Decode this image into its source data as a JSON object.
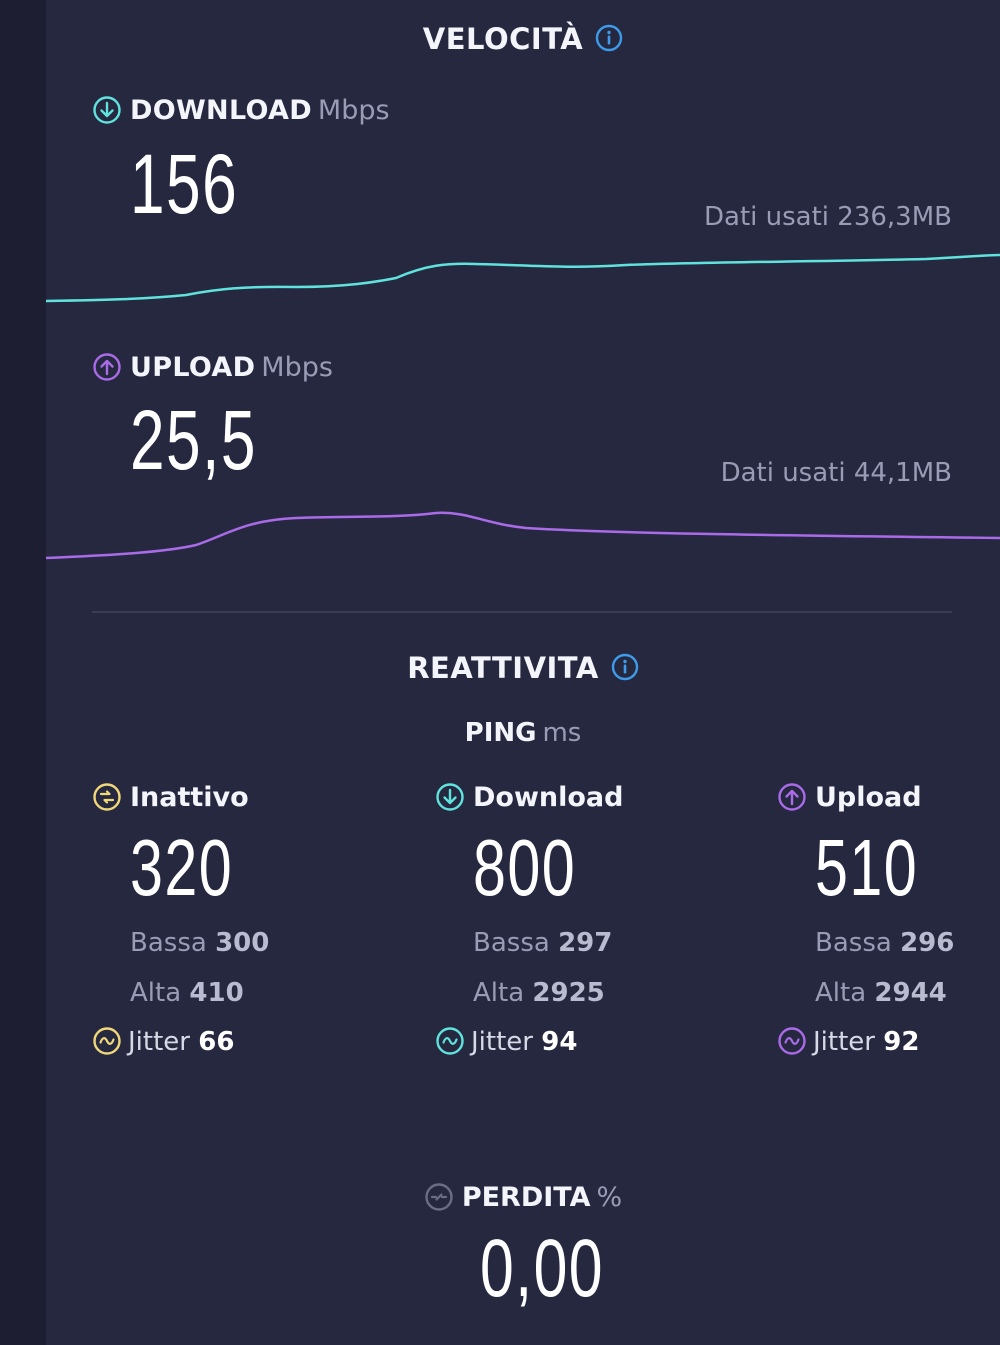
{
  "speed": {
    "title": "VELOCITÀ",
    "download": {
      "label": "DOWNLOAD",
      "unit": "Mbps",
      "value": "156",
      "data_used": "Dati usati 236,3MB",
      "color": "#5fe3dc"
    },
    "upload": {
      "label": "UPLOAD",
      "unit": "Mbps",
      "value": "25,5",
      "data_used": "Dati usati 44,1MB",
      "color": "#a96be8"
    }
  },
  "responsiveness": {
    "title": "REATTIVITA",
    "ping_label": "PING",
    "ping_unit": "ms",
    "columns": [
      {
        "label": "Inattivo",
        "value": "320",
        "low_label": "Bassa",
        "low_value": "300",
        "high_label": "Alta",
        "high_value": "410",
        "jitter_label": "Jitter",
        "jitter_value": "66",
        "color": "#f0d87a"
      },
      {
        "label": "Download",
        "value": "800",
        "low_label": "Bassa",
        "low_value": "297",
        "high_label": "Alta",
        "high_value": "2925",
        "jitter_label": "Jitter",
        "jitter_value": "94",
        "color": "#5fe3dc"
      },
      {
        "label": "Upload",
        "value": "510",
        "low_label": "Bassa",
        "low_value": "296",
        "high_label": "Alta",
        "high_value": "2944",
        "jitter_label": "Jitter",
        "jitter_value": "92",
        "color": "#a96be8"
      }
    ]
  },
  "loss": {
    "label": "PERDITA",
    "unit": "%",
    "value": "0,00"
  },
  "accent_info_color": "#3d9be9",
  "icons": [
    "info-icon",
    "download-arrow-icon",
    "upload-arrow-icon",
    "idle-icon",
    "jitter-icon",
    "packet-loss-icon"
  ]
}
